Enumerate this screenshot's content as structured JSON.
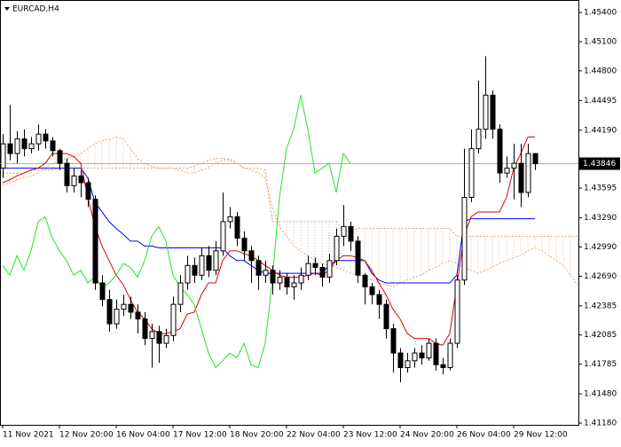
{
  "chart_data": {
    "type": "candlestick",
    "title": "EURCAD,H4",
    "categories": [
      "11 Nov 2021",
      null,
      null,
      null,
      null,
      null,
      null,
      null,
      "12 Nov 20:00",
      null,
      null,
      null,
      null,
      null,
      null,
      null,
      "16 Nov 04:00",
      null,
      null,
      null,
      null,
      null,
      null,
      null,
      "17 Nov 12:00",
      null,
      null,
      null,
      null,
      null,
      null,
      null,
      "18 Nov 20:00",
      null,
      null,
      null,
      null,
      null,
      null,
      null,
      "22 Nov 04:00",
      null,
      null,
      null,
      null,
      null,
      null,
      null,
      "23 Nov 12:00",
      null,
      null,
      null,
      null,
      null,
      null,
      null,
      "24 Nov 20:00",
      null,
      null,
      null,
      null,
      null,
      null,
      null,
      "26 Nov 04:00",
      null,
      null,
      null,
      null,
      null,
      null,
      null,
      "29 Nov 12:00",
      null,
      null,
      null,
      null,
      null,
      null,
      null,
      null,
      null
    ],
    "candles": {
      "open": [
        1.438,
        1.4405,
        1.4395,
        1.441,
        1.44,
        1.4405,
        1.4415,
        1.4408,
        1.4398,
        1.4385,
        1.4362,
        1.4372,
        1.4365,
        1.4348,
        1.4262,
        1.4245,
        1.422,
        1.4235,
        1.424,
        1.4232,
        1.4225,
        1.4205,
        1.4212,
        1.42,
        1.4208,
        1.424,
        1.4262,
        1.428,
        1.427,
        1.429,
        1.4275,
        1.4295,
        1.4325,
        1.433,
        1.4308,
        1.4295,
        1.4285,
        1.427,
        1.4275,
        1.4262,
        1.4268,
        1.4258,
        1.4262,
        1.427,
        1.4282,
        1.4278,
        1.4268,
        1.4285,
        1.431,
        1.432,
        1.4305,
        1.427,
        1.4258,
        1.425,
        1.424,
        1.4215,
        1.419,
        1.4175,
        1.4182,
        1.419,
        1.4185,
        1.42,
        1.4178,
        1.4175,
        1.42,
        1.4265,
        1.435,
        1.44,
        1.442,
        1.4455,
        1.442,
        1.4375,
        1.438,
        1.4385,
        1.4355,
        1.4395,
        null,
        null,
        null,
        null,
        null,
        null
      ],
      "high": [
        1.4415,
        1.4445,
        1.4418,
        1.442,
        1.4412,
        1.4425,
        1.442,
        1.4412,
        1.44,
        1.439,
        1.438,
        1.4378,
        1.437,
        1.4352,
        1.427,
        1.4255,
        1.4245,
        1.425,
        1.4248,
        1.424,
        1.4232,
        1.422,
        1.4218,
        1.4215,
        1.4248,
        1.427,
        1.429,
        1.4288,
        1.4298,
        1.43,
        1.4305,
        1.4355,
        1.434,
        1.4335,
        1.4315,
        1.43,
        1.429,
        1.4285,
        1.428,
        1.4275,
        1.4272,
        1.427,
        1.4278,
        1.429,
        1.4288,
        1.4282,
        1.4292,
        1.4318,
        1.4342,
        1.4325,
        1.431,
        1.4272,
        1.4262,
        1.4255,
        1.4245,
        1.422,
        1.4195,
        1.419,
        1.4195,
        1.4198,
        1.4205,
        1.4205,
        1.4185,
        1.4205,
        1.427,
        1.44,
        1.442,
        1.447,
        1.4495,
        1.446,
        1.4425,
        1.4392,
        1.4405,
        1.4405,
        1.4405,
        1.4395,
        null,
        null,
        null,
        null,
        null,
        null
      ],
      "low": [
        1.437,
        1.4388,
        1.4385,
        1.4392,
        1.4395,
        1.4398,
        1.44,
        1.4392,
        1.4378,
        1.4355,
        1.4355,
        1.435,
        1.434,
        1.4255,
        1.4238,
        1.4212,
        1.4215,
        1.4228,
        1.4225,
        1.421,
        1.4198,
        1.4175,
        1.418,
        1.4195,
        1.4202,
        1.4232,
        1.4255,
        1.4262,
        1.4265,
        1.4268,
        1.427,
        1.429,
        1.4318,
        1.43,
        1.4285,
        1.4262,
        1.4255,
        1.4262,
        1.425,
        1.4255,
        1.425,
        1.4245,
        1.4255,
        1.4265,
        1.427,
        1.4258,
        1.4262,
        1.428,
        1.43,
        1.4295,
        1.4262,
        1.424,
        1.424,
        1.4225,
        1.4205,
        1.417,
        1.416,
        1.417,
        1.4175,
        1.4178,
        1.4182,
        1.4172,
        1.4168,
        1.4172,
        1.4195,
        1.426,
        1.4345,
        1.4395,
        1.441,
        1.441,
        1.4365,
        1.437,
        1.4348,
        1.434,
        1.435,
        1.4378,
        null,
        null,
        null,
        null,
        null,
        null
      ],
      "close": [
        1.4405,
        1.4395,
        1.441,
        1.44,
        1.4405,
        1.4415,
        1.4408,
        1.4398,
        1.4385,
        1.4362,
        1.4372,
        1.4365,
        1.4348,
        1.4262,
        1.4245,
        1.422,
        1.4235,
        1.424,
        1.4232,
        1.4225,
        1.4205,
        1.4212,
        1.42,
        1.4208,
        1.424,
        1.4262,
        1.428,
        1.427,
        1.429,
        1.4275,
        1.4295,
        1.4325,
        1.433,
        1.4308,
        1.4295,
        1.4285,
        1.427,
        1.4275,
        1.4262,
        1.4268,
        1.4258,
        1.4262,
        1.427,
        1.4282,
        1.4278,
        1.4268,
        1.4285,
        1.431,
        1.432,
        1.4305,
        1.427,
        1.4258,
        1.425,
        1.424,
        1.4215,
        1.419,
        1.4175,
        1.4182,
        1.419,
        1.4185,
        1.42,
        1.4178,
        1.4175,
        1.42,
        1.4265,
        1.435,
        1.44,
        1.442,
        1.4455,
        1.442,
        1.4375,
        1.438,
        1.4385,
        1.4355,
        1.4395,
        1.43846,
        null,
        null,
        null,
        null,
        null,
        null
      ]
    },
    "up_color": "#ffffff",
    "down_color": "#000000",
    "cloud_color": "#d9b99b",
    "series": [
      {
        "color": "#d2a67c",
        "style": "dotted",
        "values": [
          1.4375,
          1.4375,
          1.4375,
          1.4375,
          1.4378,
          1.4378,
          1.4378,
          1.4378,
          1.438,
          1.438,
          1.438,
          1.438,
          1.438,
          1.438,
          1.438,
          1.438,
          1.438,
          1.438,
          1.438,
          1.438,
          1.438,
          1.438,
          1.438,
          1.438,
          1.438,
          1.438,
          1.438,
          1.4382,
          1.4385,
          1.4388,
          1.439,
          1.439,
          1.4388,
          1.4385,
          1.438,
          1.438,
          1.438,
          1.4378,
          1.4325,
          1.4325,
          1.4325,
          1.4325,
          1.4325,
          1.4325,
          1.4325,
          1.4325,
          1.4325,
          1.4325,
          1.4315,
          1.4315,
          1.4318,
          1.4318,
          1.4318,
          1.4318,
          1.4318,
          1.4318,
          1.4318,
          1.4318,
          1.4318,
          1.4318,
          1.4318,
          1.4318,
          1.4318,
          1.4318,
          1.431,
          1.431,
          1.431,
          1.431,
          1.431,
          1.431,
          1.431,
          1.431,
          1.431,
          1.431,
          1.431,
          1.431,
          1.431,
          1.431,
          1.431,
          1.431,
          1.431,
          1.431
        ]
      },
      {
        "color": "#f4a460",
        "style": "dotted",
        "values": [
          1.4362,
          1.4365,
          1.4368,
          1.437,
          1.4372,
          1.4375,
          1.438,
          1.4385,
          1.4388,
          1.439,
          1.4392,
          1.4395,
          1.44,
          1.4405,
          1.4408,
          1.441,
          1.4412,
          1.441,
          1.44,
          1.439,
          1.4385,
          1.4382,
          1.438,
          1.438,
          1.438,
          1.4378,
          1.4375,
          1.4375,
          1.4378,
          1.438,
          1.4385,
          1.4388,
          1.439,
          1.4385,
          1.438,
          1.4378,
          1.4375,
          1.437,
          1.434,
          1.432,
          1.431,
          1.43,
          1.4295,
          1.429,
          1.4285,
          1.4282,
          1.428,
          1.4278,
          1.4275,
          1.4272,
          1.427,
          1.4268,
          1.4265,
          1.4262,
          1.426,
          1.4258,
          1.4262,
          1.4265,
          1.4268,
          1.427,
          1.4275,
          1.4278,
          1.4282,
          1.4285,
          1.4282,
          1.4278,
          1.4275,
          1.4272,
          1.4275,
          1.4278,
          1.4282,
          1.4285,
          1.4288,
          1.429,
          1.4295,
          1.4298,
          1.4295,
          1.429,
          1.4285,
          1.428,
          1.427,
          1.426
        ]
      },
      {
        "color": "#0000ff",
        "style": "solid",
        "values": [
          1.438,
          1.438,
          1.438,
          1.438,
          1.438,
          1.438,
          1.438,
          1.438,
          1.438,
          1.438,
          1.438,
          1.438,
          1.437,
          1.4345,
          1.4335,
          1.4325,
          1.4318,
          1.4312,
          1.4305,
          1.4305,
          1.43,
          1.43,
          1.4298,
          1.4298,
          1.4298,
          1.4298,
          1.4298,
          1.4298,
          1.4298,
          1.4298,
          1.4298,
          1.4298,
          1.429,
          1.4285,
          1.4285,
          1.428,
          1.4275,
          1.4272,
          1.4272,
          1.4272,
          1.4272,
          1.4272,
          1.4272,
          1.4272,
          1.4272,
          1.4272,
          1.428,
          1.4285,
          1.4285,
          1.4285,
          1.4285,
          1.4285,
          1.4272,
          1.4265,
          1.4262,
          1.4262,
          1.4262,
          1.4262,
          1.4262,
          1.4262,
          1.4262,
          1.4262,
          1.4262,
          1.4262,
          1.427,
          1.4325,
          1.4328,
          1.4328,
          1.4328,
          1.4328,
          1.4328,
          1.4328,
          1.4328,
          1.4328,
          1.4328,
          1.4328,
          null,
          null,
          null,
          null,
          null,
          null
        ]
      },
      {
        "color": "#e00000",
        "style": "solid",
        "values": [
          1.4365,
          1.4368,
          1.4372,
          1.4375,
          1.4378,
          1.438,
          1.4385,
          1.4395,
          1.4395,
          1.4395,
          1.4392,
          1.4385,
          1.435,
          1.432,
          1.43,
          1.4285,
          1.427,
          1.426,
          1.4245,
          1.4232,
          1.4225,
          1.4215,
          1.421,
          1.421,
          1.4212,
          1.4215,
          1.423,
          1.4232,
          1.425,
          1.4262,
          1.4262,
          1.4285,
          1.4295,
          1.4295,
          1.4292,
          1.429,
          1.4285,
          1.428,
          1.4275,
          1.427,
          1.4268,
          1.4268,
          1.4268,
          1.427,
          1.4272,
          1.427,
          1.4275,
          1.4285,
          1.429,
          1.429,
          1.4288,
          1.4285,
          1.4275,
          1.4262,
          1.425,
          1.4235,
          1.4225,
          1.421,
          1.4205,
          1.4205,
          1.4205,
          1.42,
          1.4198,
          1.421,
          1.426,
          1.431,
          1.433,
          1.4335,
          1.4335,
          1.4335,
          1.4335,
          1.435,
          1.438,
          1.4395,
          1.4412,
          1.4412,
          null,
          null,
          null,
          null,
          null,
          null
        ]
      },
      {
        "color": "#22e622",
        "style": "solid",
        "values": [
          1.428,
          1.427,
          1.429,
          1.4275,
          1.4295,
          1.4325,
          1.433,
          1.4308,
          1.4295,
          1.4285,
          1.427,
          1.4275,
          1.4262,
          1.4268,
          1.4258,
          1.4262,
          1.427,
          1.4282,
          1.4278,
          1.4268,
          1.4285,
          1.431,
          1.432,
          1.4305,
          1.427,
          1.4258,
          1.425,
          1.424,
          1.4215,
          1.419,
          1.4175,
          1.4182,
          1.419,
          1.4185,
          1.42,
          1.4178,
          1.4175,
          1.42,
          1.4265,
          1.435,
          1.44,
          1.442,
          1.4455,
          1.442,
          1.4375,
          1.438,
          1.4385,
          1.4355,
          1.4395,
          1.43846,
          null,
          null,
          null,
          null,
          null,
          null,
          null,
          null,
          null,
          null,
          null,
          null,
          null,
          null,
          null,
          null,
          null,
          null,
          null,
          null,
          null,
          null,
          null,
          null,
          null,
          null,
          null,
          null,
          null,
          null,
          null,
          null
        ]
      }
    ],
    "current_price": {
      "value": 1.43846,
      "label": "1.43846"
    },
    "ylim": [
      1.41162,
      1.45528
    ],
    "yticks": [
      {
        "value": 1.454,
        "label": "1.45400"
      },
      {
        "value": 1.451,
        "label": "1.45100"
      },
      {
        "value": 1.448,
        "label": "1.44800"
      },
      {
        "value": 1.44495,
        "label": "1.44495"
      },
      {
        "value": 1.4419,
        "label": "1.44190"
      },
      {
        "value": 1.43595,
        "label": "1.43595"
      },
      {
        "value": 1.4329,
        "label": "1.43290"
      },
      {
        "value": 1.4299,
        "label": "1.42990"
      },
      {
        "value": 1.4269,
        "label": "1.42690"
      },
      {
        "value": 1.42385,
        "label": "1.42385"
      },
      {
        "value": 1.42085,
        "label": "1.42085"
      },
      {
        "value": 1.41785,
        "label": "1.41785"
      },
      {
        "value": 1.4148,
        "label": "1.41480"
      },
      {
        "value": 1.4118,
        "label": "1.41180"
      }
    ],
    "grid": false
  }
}
